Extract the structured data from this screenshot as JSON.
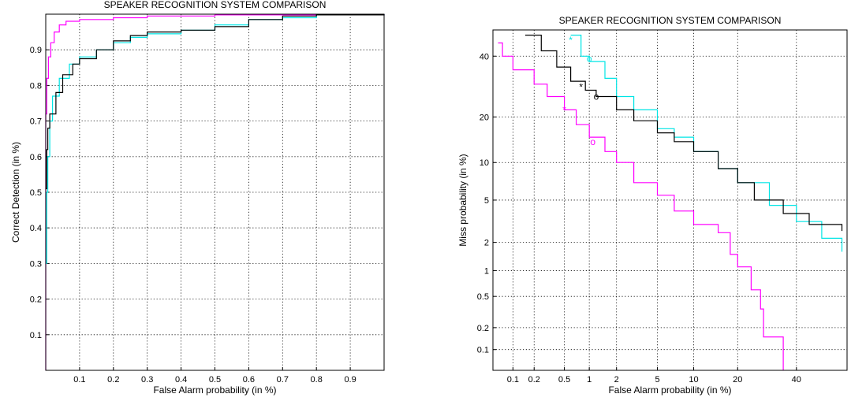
{
  "chart_data": [
    {
      "type": "line",
      "title": "SPEAKER RECOGNITION SYSTEM COMPARISON",
      "xlabel": "False Alarm probability (in %)",
      "ylabel": "Correct Detection (in %)",
      "xlim": [
        0,
        1
      ],
      "ylim": [
        0,
        1
      ],
      "xticks": [
        0.1,
        0.2,
        0.3,
        0.4,
        0.5,
        0.6,
        0.7,
        0.8,
        0.9
      ],
      "yticks": [
        0.1,
        0.2,
        0.3,
        0.4,
        0.5,
        0.6,
        0.7,
        0.8,
        0.9
      ],
      "xtick_labels": [
        "0.1",
        "0.2",
        "0.3",
        "0.4",
        "0.5",
        "0.6",
        "0.7",
        "0.8",
        "0.9"
      ],
      "ytick_labels": [
        "0.1",
        "0.2",
        "0.3",
        "0.4",
        "0.5",
        "0.6",
        "0.7",
        "0.8",
        "0.9"
      ],
      "grid": true,
      "series": [
        {
          "color": "#ff00ff",
          "points": [
            [
              0,
              0
            ],
            [
              0,
              0.72
            ],
            [
              0.003,
              0.82
            ],
            [
              0.008,
              0.88
            ],
            [
              0.015,
              0.92
            ],
            [
              0.025,
              0.95
            ],
            [
              0.04,
              0.97
            ],
            [
              0.06,
              0.98
            ],
            [
              0.1,
              0.985
            ],
            [
              0.2,
              0.99
            ],
            [
              0.3,
              0.995
            ],
            [
              0.5,
              0.998
            ],
            [
              1,
              1
            ]
          ]
        },
        {
          "color": "#00e5e5",
          "points": [
            [
              0,
              0.3
            ],
            [
              0.003,
              0.5
            ],
            [
              0.006,
              0.6
            ],
            [
              0.012,
              0.7
            ],
            [
              0.02,
              0.77
            ],
            [
              0.04,
              0.82
            ],
            [
              0.07,
              0.86
            ],
            [
              0.1,
              0.88
            ],
            [
              0.15,
              0.9
            ],
            [
              0.2,
              0.92
            ],
            [
              0.25,
              0.935
            ],
            [
              0.3,
              0.945
            ],
            [
              0.4,
              0.955
            ],
            [
              0.5,
              0.97
            ],
            [
              0.6,
              0.985
            ],
            [
              0.7,
              0.99
            ],
            [
              0.8,
              0.998
            ],
            [
              1,
              1
            ]
          ]
        },
        {
          "color": "#000000",
          "points": [
            [
              0,
              0.51
            ],
            [
              0.003,
              0.62
            ],
            [
              0.006,
              0.68
            ],
            [
              0.012,
              0.72
            ],
            [
              0.03,
              0.78
            ],
            [
              0.05,
              0.83
            ],
            [
              0.08,
              0.86
            ],
            [
              0.1,
              0.875
            ],
            [
              0.15,
              0.9
            ],
            [
              0.2,
              0.925
            ],
            [
              0.25,
              0.94
            ],
            [
              0.3,
              0.95
            ],
            [
              0.4,
              0.955
            ],
            [
              0.5,
              0.965
            ],
            [
              0.6,
              0.985
            ],
            [
              0.7,
              0.995
            ],
            [
              0.8,
              0.998
            ],
            [
              1,
              1
            ]
          ]
        }
      ]
    },
    {
      "type": "line",
      "title": "SPEAKER RECOGNITION SYSTEM COMPARISON",
      "xlabel": "False Alarm probability (in %)",
      "ylabel": "Miss probability (in %)",
      "xscale": "probit",
      "yscale": "probit",
      "xlim": [
        0.05,
        60
      ],
      "ylim": [
        0.05,
        50
      ],
      "xticks": [
        0.1,
        0.2,
        0.5,
        1,
        2,
        5,
        10,
        20,
        40
      ],
      "yticks": [
        0.1,
        0.2,
        0.5,
        1,
        2,
        5,
        10,
        20,
        40
      ],
      "xtick_labels": [
        "0.1",
        "0.2",
        "0.5",
        "1",
        "2",
        "5",
        "10",
        "20",
        "40"
      ],
      "ytick_labels": [
        "0.1",
        "0.2",
        "0.5",
        "1",
        "2",
        "5",
        "10",
        "20",
        "40"
      ],
      "grid": true,
      "series": [
        {
          "color": "#ff00ff",
          "points": [
            [
              0.06,
              45
            ],
            [
              0.07,
              40
            ],
            [
              0.1,
              35
            ],
            [
              0.2,
              30
            ],
            [
              0.3,
              26
            ],
            [
              0.5,
              22
            ],
            [
              0.7,
              18
            ],
            [
              1,
              15
            ],
            [
              1.5,
              12
            ],
            [
              2,
              10
            ],
            [
              3,
              7
            ],
            [
              5,
              5.5
            ],
            [
              7,
              4
            ],
            [
              10,
              3
            ],
            [
              15,
              2.5
            ],
            [
              18,
              1.5
            ],
            [
              20,
              1.1
            ],
            [
              24,
              0.6
            ],
            [
              27,
              0.35
            ],
            [
              28,
              0.15
            ],
            [
              34,
              0.15
            ],
            [
              35,
              0.05
            ]
          ],
          "markers": [
            [
              0.5,
              22
            ],
            [
              1.1,
              14
            ]
          ]
        },
        {
          "color": "#00e5e5",
          "points": [
            [
              0.6,
              48
            ],
            [
              0.8,
              40
            ],
            [
              1,
              38
            ],
            [
              1.5,
              32
            ],
            [
              2,
              26
            ],
            [
              3,
              22
            ],
            [
              5,
              17
            ],
            [
              7,
              15
            ],
            [
              10,
              12
            ],
            [
              15,
              9
            ],
            [
              20,
              7
            ],
            [
              30,
              4.5
            ],
            [
              40,
              3.2
            ],
            [
              50,
              2.2
            ],
            [
              58,
              1.6
            ]
          ],
          "markers": [
            [
              0.6,
              46
            ],
            [
              1,
              39
            ]
          ]
        },
        {
          "color": "#000000",
          "points": [
            [
              0.15,
              48
            ],
            [
              0.25,
              42
            ],
            [
              0.4,
              36
            ],
            [
              0.6,
              31
            ],
            [
              0.9,
              28
            ],
            [
              1.2,
              26
            ],
            [
              2,
              22
            ],
            [
              3,
              19
            ],
            [
              5,
              16
            ],
            [
              7,
              14
            ],
            [
              10,
              12
            ],
            [
              15,
              9
            ],
            [
              20,
              7
            ],
            [
              25,
              5
            ],
            [
              35,
              3.8
            ],
            [
              45,
              3
            ],
            [
              58,
              2.6
            ]
          ],
          "markers": [
            [
              0.8,
              29
            ],
            [
              1.2,
              26
            ]
          ]
        }
      ]
    }
  ]
}
